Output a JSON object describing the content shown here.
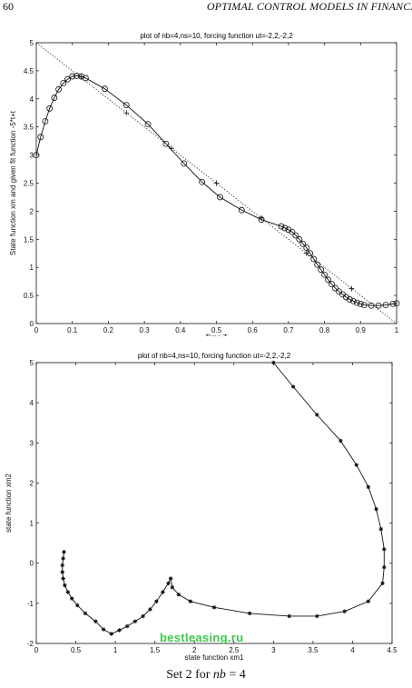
{
  "header": {
    "page_number": "60",
    "running_title": "OPTIMAL CONTROL MODELS IN FINANCE"
  },
  "caption": {
    "text": "Set 2 for ",
    "variable": "nb",
    "rest": " = 4"
  },
  "watermark": {
    "text_a": "bestleasing",
    "text_b": ".ru",
    "color": "#28c43a"
  },
  "chart_data": [
    {
      "type": "line",
      "title": "plot of nb=4,ns=10, forcing function ut=-2,2,-2,2",
      "xlabel": "Time T",
      "ylabel": "State function xm and given fit function -5*t+t",
      "xlim": [
        0,
        1
      ],
      "ylim": [
        0,
        5
      ],
      "xticks": [
        "0",
        "0.1",
        "0.2",
        "0.3",
        "0.4",
        "0.5",
        "0.6",
        "0.7",
        "0.8",
        "0.9",
        "1"
      ],
      "yticks": [
        "0",
        "0.5",
        "1",
        "1.5",
        "2",
        "2.5",
        "3",
        "3.5",
        "4",
        "4.5",
        "5"
      ],
      "series": [
        {
          "marker": "circle",
          "style": "solid",
          "x": [
            0,
            0.012,
            0.025,
            0.037,
            0.05,
            0.062,
            0.075,
            0.087,
            0.1,
            0.112,
            0.125,
            0.137,
            0.19,
            0.25,
            0.31,
            0.36,
            0.41,
            0.46,
            0.51,
            0.57,
            0.625,
            0.68,
            0.69,
            0.7,
            0.71,
            0.72,
            0.73,
            0.74,
            0.75,
            0.76,
            0.77,
            0.78,
            0.79,
            0.8,
            0.81,
            0.82,
            0.83,
            0.84,
            0.85,
            0.86,
            0.87,
            0.88,
            0.89,
            0.9,
            0.91,
            0.93,
            0.95,
            0.97,
            0.99,
            1.0
          ],
          "y": [
            3.0,
            3.32,
            3.6,
            3.83,
            4.02,
            4.17,
            4.28,
            4.35,
            4.4,
            4.41,
            4.4,
            4.37,
            4.18,
            3.89,
            3.55,
            3.2,
            2.85,
            2.52,
            2.25,
            2.02,
            1.85,
            1.73,
            1.7,
            1.67,
            1.63,
            1.57,
            1.5,
            1.42,
            1.35,
            1.25,
            1.15,
            1.05,
            0.96,
            0.87,
            0.78,
            0.7,
            0.63,
            0.57,
            0.52,
            0.47,
            0.43,
            0.4,
            0.37,
            0.35,
            0.33,
            0.32,
            0.32,
            0.33,
            0.35,
            0.36
          ]
        },
        {
          "marker": "plus",
          "style": "none",
          "x": [
            0.125,
            0.25,
            0.375,
            0.5,
            0.625,
            0.75,
            0.875
          ],
          "y": [
            4.39,
            3.75,
            3.12,
            2.5,
            1.88,
            1.25,
            0.62
          ]
        },
        {
          "marker": "none",
          "style": "dotted",
          "x": [
            0,
            1
          ],
          "y": [
            5,
            0
          ]
        }
      ]
    },
    {
      "type": "line",
      "title": "plot of nb=4,ns=10, forcing function ut=-2,2,-2,2",
      "xlabel": "state function xm1",
      "ylabel": "state function xm2",
      "xlim": [
        0,
        4.5
      ],
      "ylim": [
        -2,
        5
      ],
      "xticks": [
        "0",
        "0.5",
        "1",
        "1.5",
        "2",
        "2.5",
        "3",
        "3.5",
        "4",
        "4.5"
      ],
      "yticks": [
        "-2",
        "-1",
        "0",
        "1",
        "2",
        "3",
        "4",
        "5"
      ],
      "series": [
        {
          "marker": "star",
          "style": "solid",
          "x": [
            3.0,
            3.25,
            3.55,
            3.85,
            4.05,
            4.2,
            4.3,
            4.36,
            4.4,
            4.4,
            4.38,
            4.2,
            3.9,
            3.55,
            3.2,
            2.7,
            2.25,
            1.95,
            1.8,
            1.72,
            1.7,
            1.67,
            1.6,
            1.52,
            1.44,
            1.35,
            1.25,
            1.15,
            1.05,
            0.95,
            0.85,
            0.75,
            0.62,
            0.52,
            0.45,
            0.4,
            0.36,
            0.34,
            0.33,
            0.33,
            0.34,
            0.35
          ],
          "y": [
            5.0,
            4.4,
            3.7,
            3.05,
            2.45,
            1.9,
            1.35,
            0.85,
            0.35,
            -0.1,
            -0.5,
            -0.95,
            -1.2,
            -1.32,
            -1.32,
            -1.25,
            -1.1,
            -0.95,
            -0.78,
            -0.6,
            -0.38,
            -0.5,
            -0.72,
            -0.95,
            -1.15,
            -1.32,
            -1.45,
            -1.57,
            -1.67,
            -1.76,
            -1.65,
            -1.45,
            -1.25,
            -1.05,
            -0.88,
            -0.72,
            -0.55,
            -0.38,
            -0.22,
            -0.05,
            0.12,
            0.28
          ]
        }
      ]
    }
  ]
}
